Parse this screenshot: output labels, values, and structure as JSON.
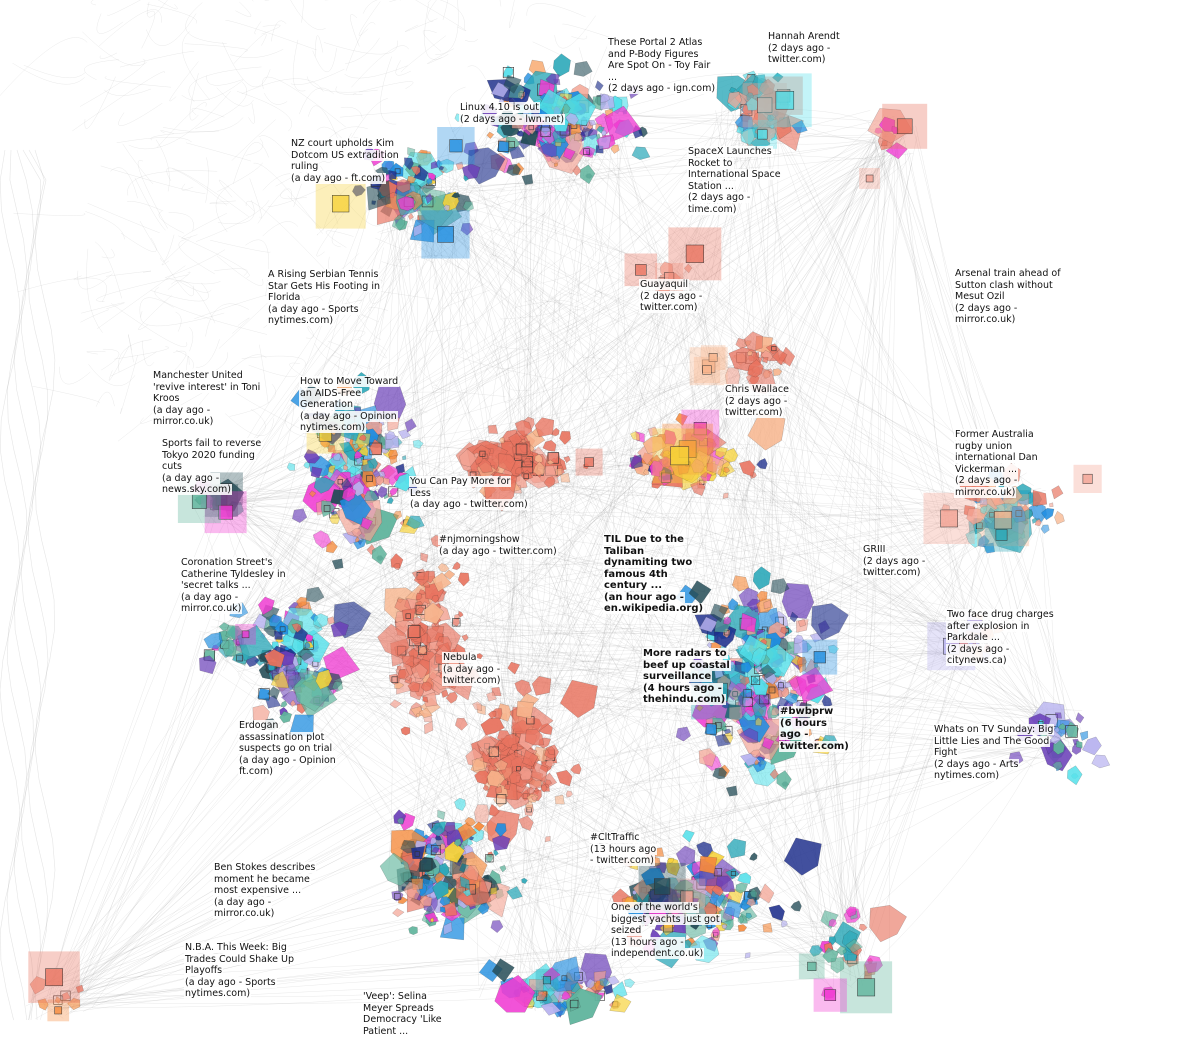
{
  "palette": {
    "coral": "#e8735f",
    "salmon": "#f3a393",
    "orange": "#f58a3c",
    "teal": "#2aa7b8",
    "cyan": "#53e0ea",
    "blue": "#1f8de0",
    "navy": "#1e2f8c",
    "purple": "#6a3fb8",
    "lavender": "#b7b2ef",
    "magenta": "#f03ad2",
    "darkslate": "#244c57",
    "seagreen": "#5fb49c",
    "yellow": "#f6d23a",
    "peach": "#f7b48c",
    "link_gray": "#777777"
  },
  "stories": [
    {
      "id": "portal2",
      "title": "These Portal 2 Atlas and P-Body Figures Are Spot On - Toy Fair ...",
      "meta": "(2 days ago - ign.com)",
      "bold": false
    },
    {
      "id": "arendt",
      "title": "Hannah Arendt",
      "meta": "(2 days ago - twitter.com)",
      "bold": false
    },
    {
      "id": "linux",
      "title": "Linux 4.10 is out",
      "meta": "(2 days ago - lwn.net)",
      "bold": false
    },
    {
      "id": "kimdotcom",
      "title": "NZ court upholds Kim Dotcom US extradition ruling",
      "meta": "(a day ago - ft.com)",
      "bold": false
    },
    {
      "id": "spacex",
      "title": "SpaceX Launches Rocket to International Space Station ...",
      "meta": "(2 days ago - time.com)",
      "bold": false
    },
    {
      "id": "serbian",
      "title": "A Rising Serbian Tennis Star Gets His Footing in Florida",
      "meta": "(a day ago - Sports nytimes.com)",
      "bold": false
    },
    {
      "id": "guayaquil",
      "title": "Guayaquil",
      "meta": "(2 days ago - twitter.com)",
      "bold": false
    },
    {
      "id": "arsenal",
      "title": "Arsenal train ahead of Sutton clash without Mesut Ozil",
      "meta": "(2 days ago - mirror.co.uk)",
      "bold": false
    },
    {
      "id": "kroos",
      "title": "Manchester United 'revive interest' in Toni Kroos",
      "meta": "(a day ago - mirror.co.uk)",
      "bold": false
    },
    {
      "id": "aids",
      "title": "How to Move Toward an AIDS-Free Generation",
      "meta": "(a day ago - Opinion nytimes.com)",
      "bold": false
    },
    {
      "id": "wallace",
      "title": "Chris Wallace",
      "meta": "(2 days ago - twitter.com)",
      "bold": false
    },
    {
      "id": "tokyo",
      "title": "Sports fail to reverse Tokyo 2020 funding cuts",
      "meta": "(a day ago - news.sky.com)",
      "bold": false
    },
    {
      "id": "vickerman",
      "title": "Former Australia rugby union international Dan Vickerman ...",
      "meta": "(2 days ago - mirror.co.uk)",
      "bold": false
    },
    {
      "id": "paymore",
      "title": "You Can Pay More for Less",
      "meta": "(a day ago - twitter.com)",
      "bold": false
    },
    {
      "id": "njmorning",
      "title": "#njmorningshow",
      "meta": "(a day ago - twitter.com)",
      "bold": false
    },
    {
      "id": "taliban",
      "title": "TIL Due to the Taliban dynamiting two famous 4th century ...",
      "meta": "(an hour ago - en.wikipedia.org)",
      "bold": true
    },
    {
      "id": "griii",
      "title": "GRIII",
      "meta": "(2 days ago - twitter.com)",
      "bold": false
    },
    {
      "id": "tyldesley",
      "title": "Coronation Street's Catherine Tyldesley in 'secret talks ...",
      "meta": "(a day ago - mirror.co.uk)",
      "bold": false
    },
    {
      "id": "parkdale",
      "title": "Two face drug charges after explosion in Parkdale ...",
      "meta": "(2 days ago - citynews.ca)",
      "bold": false
    },
    {
      "id": "nebula",
      "title": "Nebula",
      "meta": "(a day ago - twitter.com)",
      "bold": false
    },
    {
      "id": "radars",
      "title": "More radars to beef up coastal surveillance",
      "meta": "(4 hours ago - thehindu.com)",
      "bold": true
    },
    {
      "id": "bwbprw",
      "title": "#bwbprw",
      "meta": "(6 hours ago - twitter.com)",
      "bold": true
    },
    {
      "id": "erdogan",
      "title": "Erdogan assassination plot suspects go on trial",
      "meta": "(a day ago - Opinion ft.com)",
      "bold": false
    },
    {
      "id": "bigtv",
      "title": "Whats on TV Sunday: Big Little Lies and The Good Fight",
      "meta": "(2 days ago - Arts nytimes.com)",
      "bold": false
    },
    {
      "id": "citraffic",
      "title": "#CltTraffic",
      "meta": "(13 hours ago - twitter.com)",
      "bold": false
    },
    {
      "id": "stokes",
      "title": "Ben Stokes describes moment he became most expensive ...",
      "meta": "(a day ago - mirror.co.uk)",
      "bold": false
    },
    {
      "id": "yacht",
      "title": "One of the world's biggest yachts just got seized",
      "meta": "(13 hours ago - independent.co.uk)",
      "bold": false
    },
    {
      "id": "nba",
      "title": "N.B.A. This Week: Big Trades Could Shake Up Playoffs",
      "meta": "(a day ago - Sports nytimes.com)",
      "bold": false
    },
    {
      "id": "veep",
      "title": "'Veep': Selina Meyer Spreads Democracy 'Like Patient ...",
      "meta": "",
      "bold": false
    }
  ]
}
